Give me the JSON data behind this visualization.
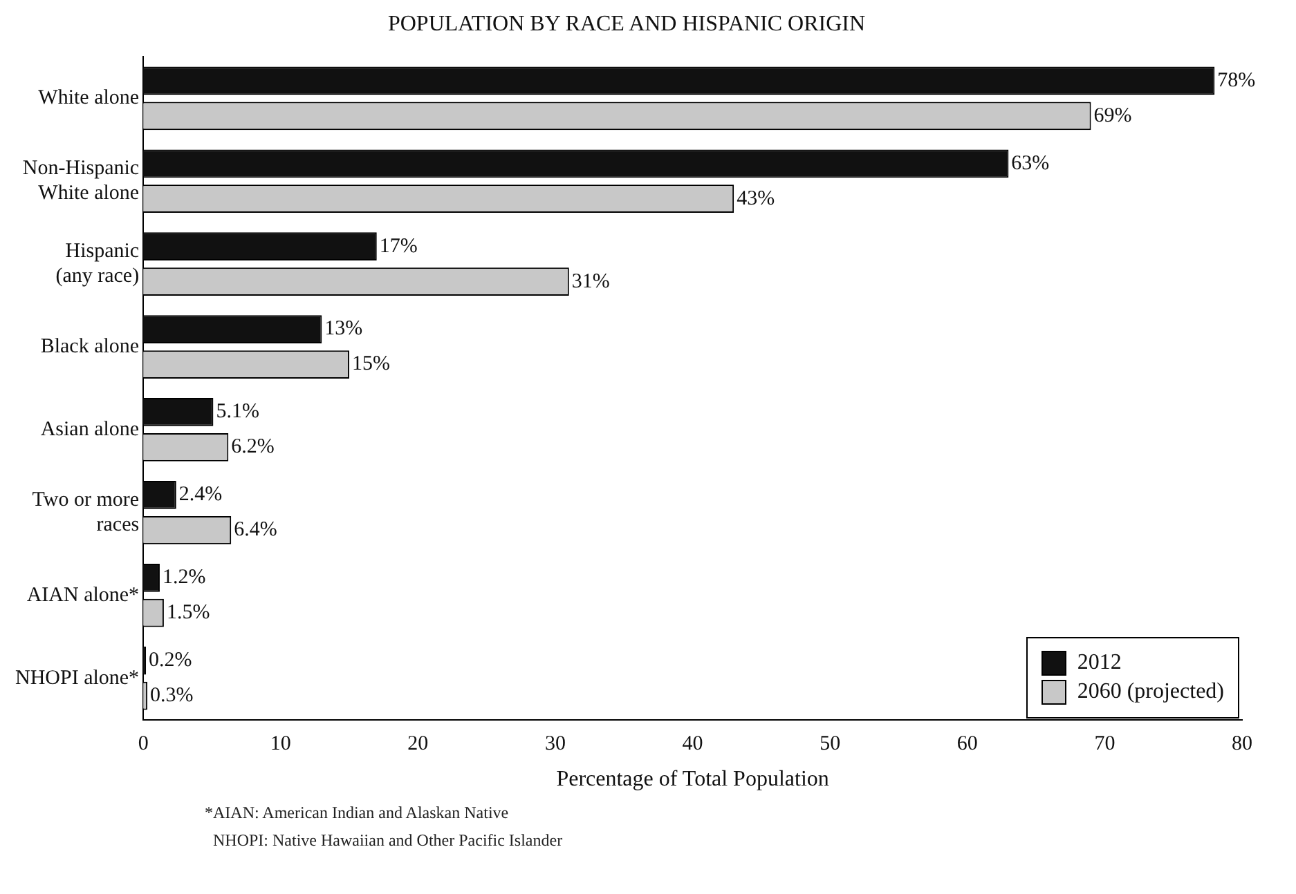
{
  "chart_data": {
    "type": "bar",
    "orientation": "horizontal",
    "title": "POPULATION BY RACE AND HISPANIC ORIGIN",
    "xlabel": "Percentage of Total Population",
    "categories": [
      "White alone",
      "Non-Hispanic White alone",
      "Hispanic (any race)",
      "Black alone",
      "Asian alone",
      "Two or more races",
      "AIAN alone*",
      "NHOPI alone*"
    ],
    "series": [
      {
        "name": "2012",
        "color": "#111111",
        "values": [
          78,
          63,
          17,
          13,
          5.1,
          2.4,
          1.2,
          0.2
        ],
        "value_labels": [
          "78%",
          "63%",
          "17%",
          "13%",
          "5.1%",
          "2.4%",
          "1.2%",
          "0.2%"
        ]
      },
      {
        "name": "2060 (projected)",
        "color": "#c8c8c8",
        "values": [
          69,
          43,
          31,
          15,
          6.2,
          6.4,
          1.5,
          0.3
        ],
        "value_labels": [
          "69%",
          "43%",
          "31%",
          "15%",
          "6.2%",
          "6.4%",
          "1.5%",
          "0.3%"
        ]
      }
    ],
    "xlim": [
      0,
      80
    ],
    "xticks": [
      0,
      10,
      20,
      30,
      40,
      50,
      60,
      70,
      80
    ],
    "grid": false,
    "legend": "bottom right",
    "annotations": [
      "*AIAN: American Indian and Alaskan Native",
      "NHOPI: Native Hawaiian and Other Pacific Islander"
    ]
  }
}
